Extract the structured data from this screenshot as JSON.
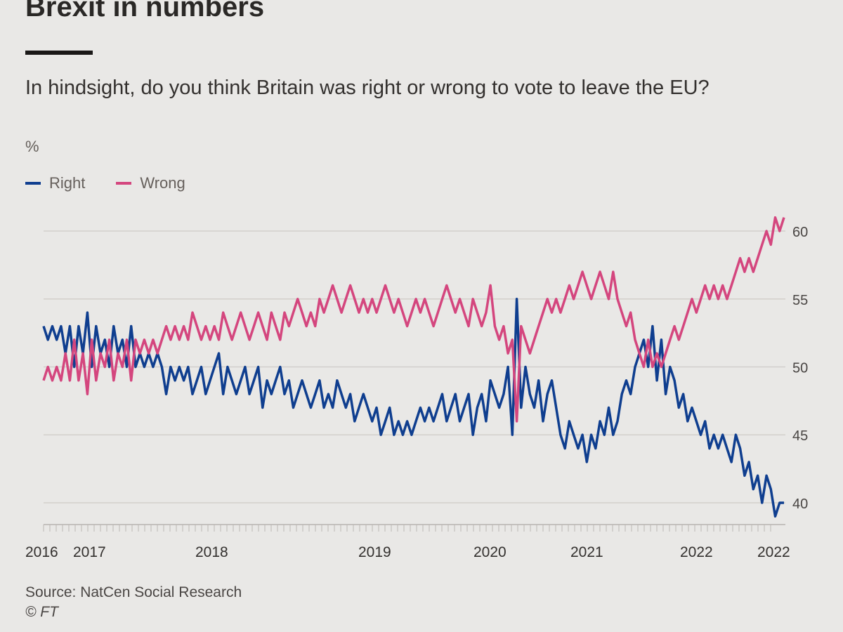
{
  "header": {
    "headline": "Brexit in numbers",
    "subtitle": "In hindsight, do you think Britain was right or wrong to vote to leave the EU?",
    "unit": "%"
  },
  "legend": [
    {
      "label": "Right",
      "color": "#0f3e8f"
    },
    {
      "label": "Wrong",
      "color": "#d4467e"
    }
  ],
  "footer": {
    "source": "Source: NatCen Social Research",
    "copyright": "© FT"
  },
  "chart_data": {
    "type": "line",
    "title": "In hindsight, do you think Britain was right or wrong to vote to leave the EU?",
    "ylabel": "%",
    "ylim": [
      38.5,
      61.5
    ],
    "y_ticks": [
      40,
      45,
      50,
      55,
      60
    ],
    "y_axis_side": "right",
    "grid": true,
    "legend_position": "top-left",
    "x_tick_labels": [
      "2016",
      "2017",
      "2018",
      "2019",
      "2020",
      "2021",
      "2022",
      "2022"
    ],
    "series": [
      {
        "name": "Right",
        "color": "#0f3e8f",
        "values": [
          53,
          52,
          53,
          52,
          53,
          51,
          53,
          50,
          53,
          51,
          54,
          50,
          53,
          51,
          52,
          50,
          53,
          51,
          52,
          50,
          53,
          50,
          51,
          50,
          51,
          50,
          51,
          50,
          48,
          50,
          49,
          50,
          49,
          50,
          48,
          49,
          50,
          48,
          49,
          50,
          51,
          48,
          50,
          49,
          48,
          49,
          50,
          48,
          49,
          50,
          47,
          49,
          48,
          49,
          50,
          48,
          49,
          47,
          48,
          49,
          48,
          47,
          48,
          49,
          47,
          48,
          47,
          49,
          48,
          47,
          48,
          46,
          47,
          48,
          47,
          46,
          47,
          45,
          46,
          47,
          45,
          46,
          45,
          46,
          45,
          46,
          47,
          46,
          47,
          46,
          47,
          48,
          46,
          47,
          48,
          46,
          47,
          48,
          45,
          47,
          48,
          46,
          49,
          48,
          47,
          48,
          50,
          45,
          55,
          47,
          50,
          48,
          47,
          49,
          46,
          48,
          49,
          47,
          45,
          44,
          46,
          45,
          44,
          45,
          43,
          45,
          44,
          46,
          45,
          47,
          45,
          46,
          48,
          49,
          48,
          50,
          51,
          52,
          50,
          53,
          49,
          52,
          48,
          50,
          49,
          47,
          48,
          46,
          47,
          46,
          45,
          46,
          44,
          45,
          44,
          45,
          44,
          43,
          45,
          44,
          42,
          43,
          41,
          42,
          40,
          42,
          41,
          39,
          40,
          40
        ]
      },
      {
        "name": "Wrong",
        "color": "#d4467e",
        "values": [
          49,
          50,
          49,
          50,
          49,
          51,
          49,
          52,
          49,
          51,
          48,
          52,
          49,
          51,
          50,
          52,
          49,
          51,
          50,
          52,
          49,
          52,
          51,
          52,
          51,
          52,
          51,
          52,
          53,
          52,
          53,
          52,
          53,
          52,
          54,
          53,
          52,
          53,
          52,
          53,
          52,
          54,
          53,
          52,
          53,
          54,
          53,
          52,
          53,
          54,
          53,
          52,
          54,
          53,
          52,
          54,
          53,
          54,
          55,
          54,
          53,
          54,
          53,
          55,
          54,
          55,
          56,
          55,
          54,
          55,
          56,
          55,
          54,
          55,
          54,
          55,
          54,
          55,
          56,
          55,
          54,
          55,
          54,
          53,
          54,
          55,
          54,
          55,
          54,
          53,
          54,
          55,
          56,
          55,
          54,
          55,
          54,
          53,
          55,
          54,
          53,
          54,
          56,
          53,
          52,
          53,
          51,
          52,
          46,
          53,
          52,
          51,
          52,
          53,
          54,
          55,
          54,
          55,
          54,
          55,
          56,
          55,
          56,
          57,
          56,
          55,
          56,
          57,
          56,
          55,
          57,
          55,
          54,
          53,
          54,
          52,
          51,
          50,
          52,
          50,
          51,
          50,
          51,
          52,
          53,
          52,
          53,
          54,
          55,
          54,
          55,
          56,
          55,
          56,
          55,
          56,
          55,
          56,
          57,
          58,
          57,
          58,
          57,
          58,
          59,
          60,
          59,
          61,
          60,
          61
        ]
      }
    ]
  }
}
